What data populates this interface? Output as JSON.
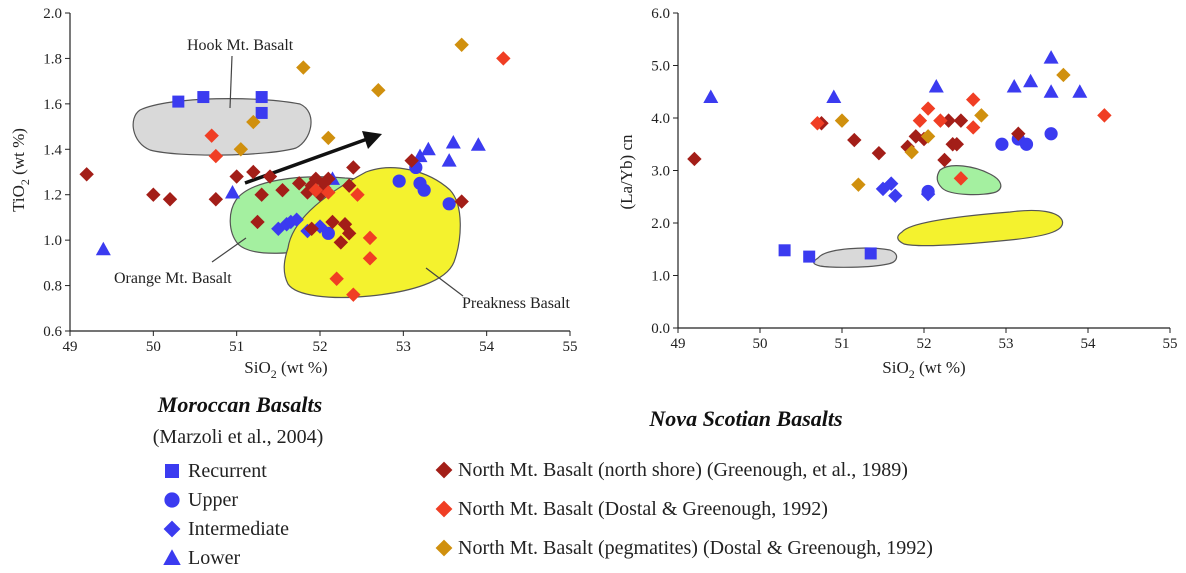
{
  "chart_data": [
    {
      "type": "scatter",
      "xlabel_main": "SiO",
      "xlabel_sub": "2",
      "xlabel_tail": " (wt %)",
      "ylabel_main": "TiO",
      "ylabel_sub": "2",
      "ylabel_tail": " (wt %)",
      "xlim": [
        49,
        55
      ],
      "ylim": [
        0.6,
        2.0
      ],
      "xticks": [
        "49",
        "50",
        "51",
        "52",
        "53",
        "54",
        "55"
      ],
      "yticks": [
        "0.6",
        "0.8",
        "1.0",
        "1.2",
        "1.4",
        "1.6",
        "1.8",
        "2.0"
      ],
      "annotations": [
        "Hook Mt. Basalt",
        "Orange Mt. Basalt",
        "Preakness Basalt"
      ],
      "series": [
        {
          "name": "Recurrent",
          "marker": "square",
          "color": "#3b3bf0",
          "points": [
            [
              50.3,
              1.61
            ],
            [
              50.6,
              1.63
            ],
            [
              51.3,
              1.63
            ],
            [
              51.3,
              1.56
            ]
          ]
        },
        {
          "name": "Upper",
          "marker": "circle",
          "color": "#3b3bf0",
          "points": [
            [
              52.95,
              1.26
            ],
            [
              53.15,
              1.32
            ],
            [
              53.2,
              1.25
            ],
            [
              53.25,
              1.22
            ],
            [
              53.55,
              1.16
            ],
            [
              52.1,
              1.03
            ]
          ]
        },
        {
          "name": "Intermediate",
          "marker": "diamond",
          "color": "#3b3bf0",
          "points": [
            [
              51.5,
              1.05
            ],
            [
              51.6,
              1.07
            ],
            [
              51.65,
              1.08
            ],
            [
              51.72,
              1.09
            ],
            [
              51.85,
              1.04
            ],
            [
              52.0,
              1.06
            ]
          ]
        },
        {
          "name": "Lower",
          "marker": "triangle",
          "color": "#3b3bf0",
          "points": [
            [
              49.4,
              0.96
            ],
            [
              50.95,
              1.21
            ],
            [
              52.15,
              1.27
            ],
            [
              53.2,
              1.37
            ],
            [
              53.3,
              1.4
            ],
            [
              53.55,
              1.35
            ],
            [
              53.6,
              1.43
            ],
            [
              53.9,
              1.42
            ]
          ]
        },
        {
          "name": "North Mt. Basalt (north shore) (Greenough, et al., 1989)",
          "marker": "diamond",
          "color": "#a31e18",
          "points": [
            [
              49.2,
              1.29
            ],
            [
              50.0,
              1.2
            ],
            [
              50.2,
              1.18
            ],
            [
              50.75,
              1.18
            ],
            [
              51.0,
              1.28
            ],
            [
              51.2,
              1.3
            ],
            [
              51.25,
              1.08
            ],
            [
              51.3,
              1.2
            ],
            [
              51.4,
              1.28
            ],
            [
              51.55,
              1.22
            ],
            [
              51.75,
              1.25
            ],
            [
              51.85,
              1.21
            ],
            [
              51.9,
              1.24
            ],
            [
              51.95,
              1.27
            ],
            [
              52.0,
              1.2
            ],
            [
              52.05,
              1.23
            ],
            [
              52.1,
              1.27
            ],
            [
              52.15,
              1.08
            ],
            [
              52.25,
              0.99
            ],
            [
              52.3,
              1.07
            ],
            [
              52.35,
              1.03
            ],
            [
              52.35,
              1.24
            ],
            [
              52.4,
              1.32
            ],
            [
              53.1,
              1.35
            ],
            [
              53.7,
              1.17
            ],
            [
              51.9,
              1.05
            ],
            [
              52.05,
              1.25
            ]
          ]
        },
        {
          "name": "North Mt. Basalt (Dostal & Greenough, 1992)",
          "marker": "diamond",
          "color": "#f03e24",
          "points": [
            [
              50.7,
              1.46
            ],
            [
              50.75,
              1.37
            ],
            [
              52.1,
              1.21
            ],
            [
              52.2,
              0.83
            ],
            [
              52.4,
              0.76
            ],
            [
              52.45,
              1.2
            ],
            [
              52.6,
              1.01
            ],
            [
              52.6,
              0.92
            ],
            [
              54.2,
              1.8
            ],
            [
              51.95,
              1.22
            ]
          ]
        },
        {
          "name": "North Mt. Basalt (pegmatites) (Dostal & Greenough, 1992)",
          "marker": "diamond",
          "color": "#d0900e",
          "points": [
            [
              51.05,
              1.4
            ],
            [
              51.2,
              1.52
            ],
            [
              51.8,
              1.76
            ],
            [
              52.1,
              1.45
            ],
            [
              52.7,
              1.66
            ],
            [
              53.7,
              1.86
            ]
          ]
        }
      ]
    },
    {
      "type": "scatter",
      "xlabel_main": "SiO",
      "xlabel_sub": "2",
      "xlabel_tail": " (wt %)",
      "ylabel_main": "(La/Yb) cn",
      "xlim": [
        49,
        55
      ],
      "ylim": [
        0.0,
        6.0
      ],
      "xticks": [
        "49",
        "50",
        "51",
        "52",
        "53",
        "54",
        "55"
      ],
      "yticks": [
        "0.0",
        "1.0",
        "2.0",
        "3.0",
        "4.0",
        "5.0",
        "6.0"
      ],
      "series": [
        {
          "name": "Recurrent",
          "marker": "square",
          "color": "#3b3bf0",
          "points": [
            [
              50.3,
              1.48
            ],
            [
              50.6,
              1.36
            ],
            [
              51.35,
              1.42
            ]
          ]
        },
        {
          "name": "Upper",
          "marker": "circle",
          "color": "#3b3bf0",
          "points": [
            [
              52.05,
              2.6
            ],
            [
              52.95,
              3.5
            ],
            [
              53.15,
              3.6
            ],
            [
              53.25,
              3.5
            ],
            [
              53.55,
              3.7
            ]
          ]
        },
        {
          "name": "Intermediate",
          "marker": "diamond",
          "color": "#3b3bf0",
          "points": [
            [
              51.5,
              2.65
            ],
            [
              51.6,
              2.75
            ],
            [
              51.65,
              2.52
            ],
            [
              52.05,
              2.55
            ]
          ]
        },
        {
          "name": "Lower",
          "marker": "triangle",
          "color": "#3b3bf0",
          "points": [
            [
              49.4,
              4.4
            ],
            [
              50.9,
              4.4
            ],
            [
              52.15,
              4.6
            ],
            [
              53.1,
              4.6
            ],
            [
              53.3,
              4.7
            ],
            [
              53.55,
              5.15
            ],
            [
              53.55,
              4.5
            ],
            [
              53.9,
              4.5
            ]
          ]
        },
        {
          "name": "North Mt. Basalt (north shore) (Greenough, et al., 1989)",
          "marker": "diamond",
          "color": "#a31e18",
          "points": [
            [
              49.2,
              3.22
            ],
            [
              50.75,
              3.9
            ],
            [
              51.15,
              3.58
            ],
            [
              51.45,
              3.33
            ],
            [
              51.8,
              3.45
            ],
            [
              51.9,
              3.65
            ],
            [
              52.0,
              3.6
            ],
            [
              52.25,
              3.2
            ],
            [
              52.3,
              3.95
            ],
            [
              52.35,
              3.5
            ],
            [
              52.4,
              3.5
            ],
            [
              52.45,
              3.95
            ],
            [
              53.15,
              3.7
            ]
          ]
        },
        {
          "name": "North Mt. Basalt (Dostal & Greenough, 1992)",
          "marker": "diamond",
          "color": "#f03e24",
          "points": [
            [
              50.7,
              3.9
            ],
            [
              51.95,
              3.95
            ],
            [
              52.05,
              4.18
            ],
            [
              52.2,
              3.95
            ],
            [
              52.45,
              2.85
            ],
            [
              52.6,
              4.35
            ],
            [
              52.6,
              3.82
            ],
            [
              54.2,
              4.05
            ]
          ]
        },
        {
          "name": "North Mt. Basalt (pegmatites) (Dostal & Greenough, 1992)",
          "marker": "diamond",
          "color": "#d0900e",
          "points": [
            [
              51.0,
              3.95
            ],
            [
              51.2,
              2.73
            ],
            [
              51.85,
              3.35
            ],
            [
              52.05,
              3.65
            ],
            [
              52.7,
              4.05
            ],
            [
              53.7,
              4.82
            ]
          ]
        }
      ]
    }
  ],
  "captions": {
    "moroccan_title": "Moroccan Basalts",
    "moroccan_ref": "(Marzoli et al., 2004)",
    "nova_title": "Nova Scotian Basalts"
  },
  "legend": {
    "left": [
      {
        "label": "Recurrent",
        "marker": "square",
        "color": "#3b3bf0"
      },
      {
        "label": "Upper",
        "marker": "circle",
        "color": "#3b3bf0"
      },
      {
        "label": "Intermediate",
        "marker": "diamond",
        "color": "#3b3bf0"
      },
      {
        "label": "Lower",
        "marker": "triangle",
        "color": "#3b3bf0"
      }
    ],
    "right": [
      {
        "label": "North Mt. Basalt (north shore) (Greenough, et al., 1989)",
        "marker": "diamond",
        "color": "#a31e18"
      },
      {
        "label": "North Mt. Basalt (Dostal & Greenough, 1992)",
        "marker": "diamond",
        "color": "#f03e24"
      },
      {
        "label": "North Mt. Basalt (pegmatites) (Dostal & Greenough, 1992)",
        "marker": "diamond",
        "color": "#d0900e"
      }
    ]
  },
  "field_colors": {
    "hook": "#d9d9d9",
    "orange": "#a4f0a0",
    "preakness": "#f4f22e"
  }
}
